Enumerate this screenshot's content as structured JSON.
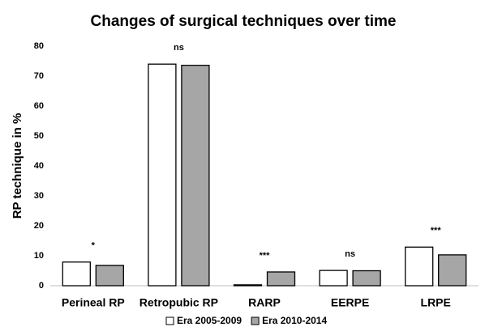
{
  "chart_data": {
    "type": "bar",
    "title": "Changes of surgical techniques over time",
    "y_label": "RP technique in %",
    "categories": [
      "Perineal RP",
      "Retropubic RP",
      "RARP",
      "EERPE",
      "LRPE"
    ],
    "series": [
      {
        "name": "Era 2005-2009",
        "color": "#ffffff",
        "values": [
          7.9,
          74,
          0.3,
          5.1,
          12.9
        ]
      },
      {
        "name": "Era 2010-2014",
        "color": "#a6a6a6",
        "values": [
          6.8,
          73.6,
          4.6,
          5.0,
          10.3
        ]
      }
    ],
    "annotations": [
      "*",
      "ns",
      "***",
      "ns",
      "***"
    ],
    "ylim": [
      0,
      80
    ],
    "yticks": [
      0,
      10,
      20,
      30,
      40,
      50,
      60,
      70,
      80
    ],
    "grid": false
  }
}
